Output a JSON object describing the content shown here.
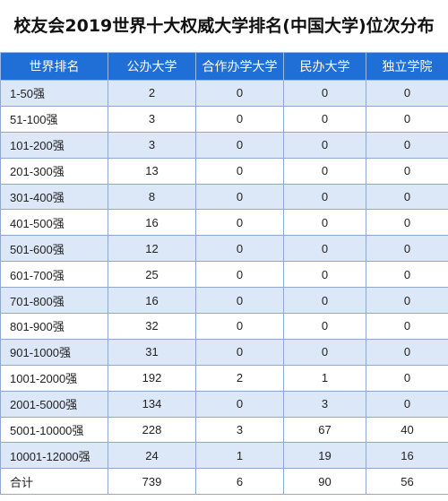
{
  "title": "校友会2019世界十大权威大学排名(中国大学)位次分布",
  "chart_data": {
    "type": "table",
    "title": "校友会2019世界十大权威大学排名(中国大学)位次分布",
    "columns": [
      "世界排名",
      "公办大学",
      "合作办学大学",
      "民办大学",
      "独立学院"
    ],
    "rows": [
      [
        "1-50强",
        "2",
        "0",
        "0",
        "0"
      ],
      [
        "51-100强",
        "3",
        "0",
        "0",
        "0"
      ],
      [
        "101-200强",
        "3",
        "0",
        "0",
        "0"
      ],
      [
        "201-300强",
        "13",
        "0",
        "0",
        "0"
      ],
      [
        "301-400强",
        "8",
        "0",
        "0",
        "0"
      ],
      [
        "401-500强",
        "16",
        "0",
        "0",
        "0"
      ],
      [
        "501-600强",
        "12",
        "0",
        "0",
        "0"
      ],
      [
        "601-700强",
        "25",
        "0",
        "0",
        "0"
      ],
      [
        "701-800强",
        "16",
        "0",
        "0",
        "0"
      ],
      [
        "801-900强",
        "32",
        "0",
        "0",
        "0"
      ],
      [
        "901-1000强",
        "31",
        "0",
        "0",
        "0"
      ],
      [
        "1001-2000强",
        "192",
        "2",
        "1",
        "0"
      ],
      [
        "2001-5000强",
        "134",
        "0",
        "3",
        "0"
      ],
      [
        "5001-10000强",
        "228",
        "3",
        "67",
        "40"
      ],
      [
        "10001-12000强",
        "24",
        "1",
        "19",
        "16"
      ],
      [
        "合计",
        "739",
        "6",
        "90",
        "56"
      ]
    ]
  }
}
